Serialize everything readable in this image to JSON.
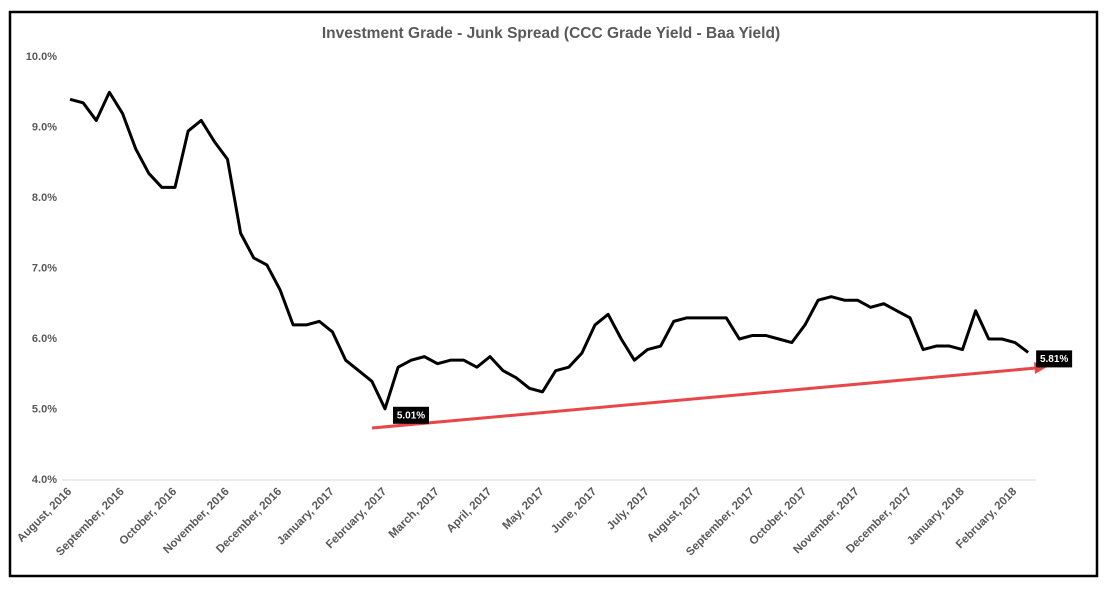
{
  "chart_data": {
    "type": "line",
    "title": "Investment Grade - Junk Spread (CCC Grade Yield - Baa Yield)",
    "categories": [
      "August, 2016",
      null,
      null,
      null,
      "September, 2016",
      null,
      null,
      null,
      "October, 2016",
      null,
      null,
      null,
      "November, 2016",
      null,
      null,
      null,
      "December, 2016",
      null,
      null,
      null,
      "January, 2017",
      null,
      null,
      null,
      "February, 2017",
      null,
      null,
      null,
      "March, 2017",
      null,
      null,
      null,
      "April, 2017",
      null,
      null,
      null,
      "May, 2017",
      null,
      null,
      null,
      "June, 2017",
      null,
      null,
      null,
      "July, 2017",
      null,
      null,
      null,
      "August, 2017",
      null,
      null,
      null,
      "September, 2017",
      null,
      null,
      null,
      "October, 2017",
      null,
      null,
      null,
      "November, 2017",
      null,
      null,
      null,
      "December, 2017",
      null,
      null,
      null,
      "January, 2018",
      null,
      null,
      null,
      "February, 2018",
      null
    ],
    "values": [
      9.4,
      9.35,
      9.1,
      9.5,
      9.2,
      8.7,
      8.35,
      8.15,
      8.15,
      8.95,
      9.1,
      8.8,
      8.55,
      7.5,
      7.15,
      7.05,
      6.7,
      6.2,
      6.2,
      6.25,
      6.1,
      5.7,
      5.55,
      5.4,
      5.01,
      5.6,
      5.7,
      5.75,
      5.65,
      5.7,
      5.7,
      5.6,
      5.75,
      5.55,
      5.45,
      5.3,
      5.25,
      5.55,
      5.6,
      5.8,
      6.2,
      6.35,
      6.0,
      5.7,
      5.85,
      5.9,
      6.25,
      6.3,
      6.3,
      6.3,
      6.3,
      6.0,
      6.05,
      6.05,
      6.0,
      5.95,
      6.2,
      6.55,
      6.6,
      6.55,
      6.55,
      6.45,
      6.5,
      6.4,
      6.3,
      5.85,
      5.9,
      5.9,
      5.85,
      6.4,
      6.0,
      6.0,
      5.95,
      5.81
    ],
    "value_labels": [
      null,
      null,
      null,
      null,
      null,
      null,
      null,
      null,
      null,
      null,
      null,
      null,
      null,
      null,
      null,
      null,
      null,
      null,
      null,
      null,
      null,
      null,
      null,
      null,
      "5.01%",
      null,
      null,
      null,
      null,
      null,
      null,
      null,
      null,
      null,
      null,
      null,
      null,
      null,
      null,
      null,
      null,
      null,
      null,
      null,
      null,
      null,
      null,
      null,
      null,
      null,
      null,
      null,
      null,
      null,
      null,
      null,
      null,
      null,
      null,
      null,
      null,
      null,
      null,
      null,
      null,
      null,
      null,
      null,
      null,
      null,
      null,
      null,
      null,
      "5.81%"
    ],
    "color": "#000000",
    "ylim": [
      4,
      10
    ],
    "yticks": [
      {
        "value": 4,
        "label": "4.0%"
      },
      {
        "value": 5,
        "label": "5.0%"
      },
      {
        "value": 6,
        "label": "6.0%"
      },
      {
        "value": 7,
        "label": "7.0%"
      },
      {
        "value": 8,
        "label": "8.0%"
      },
      {
        "value": 9,
        "label": "9.0%"
      },
      {
        "value": 10,
        "label": "10.0%"
      }
    ],
    "grid": false
  }
}
